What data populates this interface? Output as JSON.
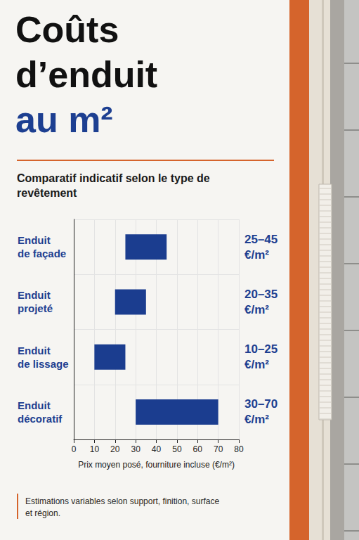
{
  "chart_data": {
    "type": "bar",
    "orientation": "horizontal",
    "title": "Coûts d’enduit au m²",
    "subtitle": "Comparatif indicatif selon le type de revêtement",
    "categories": [
      "Enduit de façade",
      "Enduit projeté",
      "Enduit de lissage",
      "Enduit décoratif"
    ],
    "low": [
      25,
      20,
      10,
      30
    ],
    "high": [
      45,
      35,
      25,
      70
    ],
    "value_labels": [
      "25–45 €/m²",
      "20–35 €/m²",
      "10–25 €/m²",
      "30–70 €/m²"
    ],
    "data_labels": true,
    "x_label": "Prix moyen posé, fourniture incluse (€/m²)",
    "xlim": [
      0,
      80
    ],
    "xticks": [
      0,
      10,
      20,
      30,
      40,
      50,
      60,
      70,
      80
    ],
    "grid": true,
    "color": "#1b3d8f",
    "annotation": "Estimations variables selon support, finition, surface et région."
  }
}
